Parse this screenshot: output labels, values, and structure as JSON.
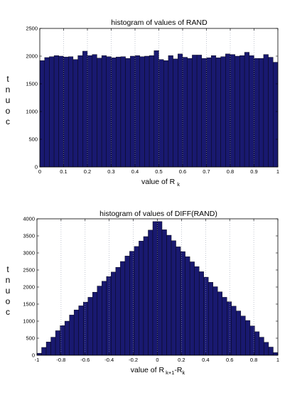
{
  "chart_data": [
    {
      "type": "bar",
      "title": "histogram of values of RAND",
      "xlabel_main": "value of R",
      "xlabel_sub": "k",
      "ylabel_letters": [
        "t",
        "n",
        "u",
        "o",
        "c"
      ],
      "xlim": [
        0,
        1
      ],
      "ylim": [
        0,
        2500
      ],
      "xticks": [
        0,
        0.1,
        0.2,
        0.3,
        0.4,
        0.5,
        0.6,
        0.7,
        0.8,
        0.9,
        1
      ],
      "xtick_labels": [
        "0",
        "0.1",
        "0.2",
        "0.3",
        "0.4",
        "0.5",
        "0.6",
        "0.7",
        "0.8",
        "0.9",
        "1"
      ],
      "yticks": [
        0,
        500,
        1000,
        1500,
        2000,
        2500
      ],
      "ytick_labels": [
        "0",
        "500",
        "1000",
        "1500",
        "2000",
        "2500"
      ],
      "bar_color": "#191970",
      "grid": "dotted",
      "values": [
        1920,
        1975,
        1990,
        2010,
        2000,
        1985,
        1990,
        1940,
        2010,
        2090,
        2010,
        2030,
        1965,
        2010,
        1990,
        1970,
        1985,
        1990,
        1960,
        2000,
        2010,
        1990,
        2000,
        2010,
        2100,
        1940,
        1920,
        2010,
        1950,
        2040,
        1980,
        1960,
        2020,
        2020,
        1960,
        1970,
        2010,
        1970,
        1990,
        2040,
        2030,
        2000,
        2010,
        2070,
        2010,
        1960,
        1960,
        2030,
        1980,
        1890
      ]
    },
    {
      "type": "bar",
      "title": "histogram of values of DIFF(RAND)",
      "xlabel_main": "value of R",
      "xlabel_sub1": "k+1",
      "xlabel_mid": "-R",
      "xlabel_sub2": "k",
      "ylabel_letters": [
        "t",
        "n",
        "u",
        "o",
        "c"
      ],
      "xlim": [
        -1,
        1
      ],
      "ylim": [
        0,
        4000
      ],
      "xticks": [
        -1,
        -0.8,
        -0.6,
        -0.4,
        -0.2,
        0,
        0.2,
        0.4,
        0.6,
        0.8,
        1
      ],
      "xtick_labels": [
        "-1",
        "-0.8",
        "-0.6",
        "-0.4",
        "-0.2",
        "0",
        "0.2",
        "0.4",
        "0.6",
        "0.8",
        "1"
      ],
      "yticks": [
        0,
        500,
        1000,
        1500,
        2000,
        2500,
        3000,
        3500,
        4000
      ],
      "ytick_labels": [
        "0",
        "500",
        "1000",
        "1500",
        "2000",
        "2500",
        "3000",
        "3500",
        "4000"
      ],
      "bar_color": "#191970",
      "grid": "dotted",
      "values": [
        60,
        230,
        390,
        530,
        720,
        870,
        1000,
        1180,
        1330,
        1450,
        1560,
        1700,
        1850,
        2030,
        2170,
        2310,
        2440,
        2580,
        2750,
        2910,
        3050,
        3190,
        3350,
        3480,
        3670,
        3920,
        3920,
        3680,
        3520,
        3360,
        3180,
        3040,
        2890,
        2740,
        2600,
        2450,
        2290,
        2140,
        2010,
        1860,
        1700,
        1570,
        1440,
        1300,
        1150,
        1020,
        860,
        690,
        530,
        380,
        240,
        80
      ]
    }
  ]
}
